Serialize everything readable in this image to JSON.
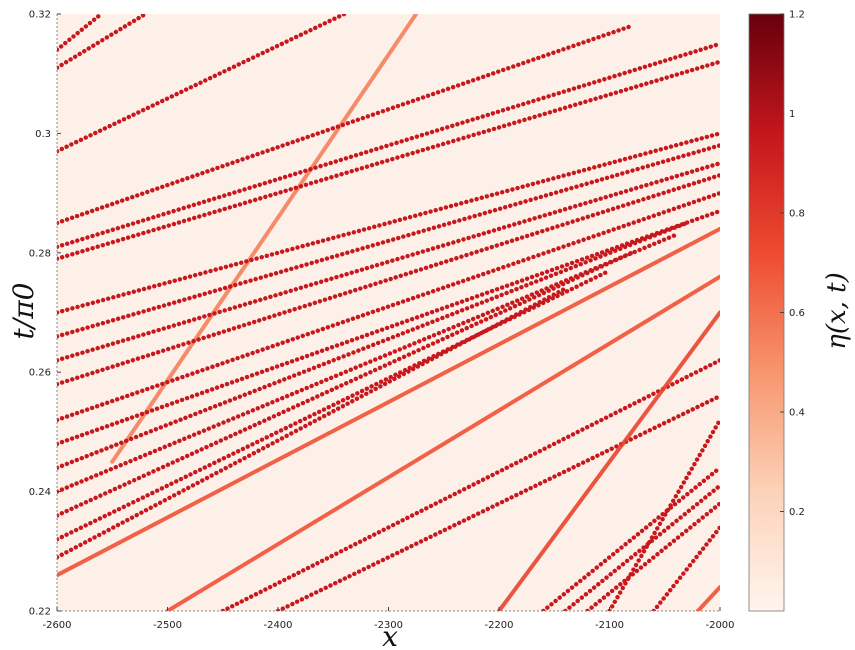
{
  "chart_data": {
    "type": "heatmap",
    "title": "",
    "xlabel": "x",
    "ylabel": "t/π0",
    "colorbar_label": "η(x, t)",
    "xlim": [
      -2600,
      -2000
    ],
    "ylim": [
      0.22,
      0.32
    ],
    "x_ticks": [
      -2600,
      -2500,
      -2400,
      -2300,
      -2200,
      -2100,
      -2000
    ],
    "y_ticks": [
      0.22,
      0.24,
      0.26,
      0.28,
      0.3,
      0.32
    ],
    "colorbar_ticks": [
      0.2,
      0.4,
      0.6,
      0.8,
      1,
      1.2
    ],
    "colorbar_range": [
      0,
      1.2
    ],
    "colormap": [
      "#fff5ee",
      "#fcd2b8",
      "#f7966e",
      "#ee4b30",
      "#c4161c",
      "#67000d"
    ],
    "background_color": "#fdf0e8",
    "series": [
      {
        "x": [
          -2550,
          -2275
        ],
        "t": [
          0.245,
          0.32
        ],
        "peak": 0.55,
        "dotted": false
      },
      {
        "x": [
          -2600,
          -2340
        ],
        "t": [
          0.297,
          0.32
        ],
        "peak": 0.95,
        "dotted": true
      },
      {
        "x": [
          -2600,
          -2520
        ],
        "t": [
          0.311,
          0.32
        ],
        "peak": 0.95,
        "dotted": true
      },
      {
        "x": [
          -2600,
          -2560
        ],
        "t": [
          0.314,
          0.32
        ],
        "peak": 0.95,
        "dotted": true
      },
      {
        "x": [
          -2600,
          -2080
        ],
        "t": [
          0.285,
          0.318
        ],
        "peak": 0.95,
        "dotted": true
      },
      {
        "x": [
          -2600,
          -2000
        ],
        "t": [
          0.281,
          0.315
        ],
        "peak": 0.95,
        "dotted": true
      },
      {
        "x": [
          -2600,
          -2000
        ],
        "t": [
          0.279,
          0.312
        ],
        "peak": 0.95,
        "dotted": true
      },
      {
        "x": [
          -2600,
          -2000
        ],
        "t": [
          0.27,
          0.3
        ],
        "peak": 0.95,
        "dotted": true
      },
      {
        "x": [
          -2600,
          -2000
        ],
        "t": [
          0.266,
          0.298
        ],
        "peak": 0.95,
        "dotted": true
      },
      {
        "x": [
          -2600,
          -2000
        ],
        "t": [
          0.262,
          0.295
        ],
        "peak": 0.95,
        "dotted": true
      },
      {
        "x": [
          -2600,
          -2000
        ],
        "t": [
          0.258,
          0.293
        ],
        "peak": 0.95,
        "dotted": true
      },
      {
        "x": [
          -2600,
          -2000
        ],
        "t": [
          0.252,
          0.29
        ],
        "peak": 0.95,
        "dotted": true
      },
      {
        "x": [
          -2600,
          -2000
        ],
        "t": [
          0.248,
          0.287
        ],
        "peak": 0.95,
        "dotted": true
      },
      {
        "x": [
          -2600,
          -2030
        ],
        "t": [
          0.244,
          0.285
        ],
        "peak": 0.95,
        "dotted": true
      },
      {
        "x": [
          -2600,
          -2040
        ],
        "t": [
          0.24,
          0.283
        ],
        "peak": 0.95,
        "dotted": true
      },
      {
        "x": [
          -2600,
          -2080
        ],
        "t": [
          0.236,
          0.28
        ],
        "peak": 0.95,
        "dotted": true
      },
      {
        "x": [
          -2600,
          -2100
        ],
        "t": [
          0.232,
          0.277
        ],
        "peak": 0.95,
        "dotted": true
      },
      {
        "x": [
          -2600,
          -2140
        ],
        "t": [
          0.229,
          0.274
        ],
        "peak": 0.95,
        "dotted": true
      },
      {
        "x": [
          -2600,
          -2000
        ],
        "t": [
          0.226,
          0.284
        ],
        "peak": 0.7,
        "dotted": false
      },
      {
        "x": [
          -2500,
          -2000
        ],
        "t": [
          0.22,
          0.276
        ],
        "peak": 0.7,
        "dotted": false
      },
      {
        "x": [
          -2450,
          -2000
        ],
        "t": [
          0.22,
          0.262
        ],
        "peak": 0.95,
        "dotted": true
      },
      {
        "x": [
          -2400,
          -2000
        ],
        "t": [
          0.22,
          0.256
        ],
        "peak": 0.95,
        "dotted": true
      },
      {
        "x": [
          -2200,
          -2000
        ],
        "t": [
          0.22,
          0.27
        ],
        "peak": 0.75,
        "dotted": false
      },
      {
        "x": [
          -2100,
          -2000
        ],
        "t": [
          0.22,
          0.252
        ],
        "peak": 0.95,
        "dotted": true
      },
      {
        "x": [
          -2160,
          -2000
        ],
        "t": [
          0.22,
          0.244
        ],
        "peak": 0.95,
        "dotted": true
      },
      {
        "x": [
          -2140,
          -2000
        ],
        "t": [
          0.22,
          0.241
        ],
        "peak": 0.95,
        "dotted": true
      },
      {
        "x": [
          -2120,
          -2000
        ],
        "t": [
          0.22,
          0.238
        ],
        "peak": 0.95,
        "dotted": true
      },
      {
        "x": [
          -2060,
          -2000
        ],
        "t": [
          0.22,
          0.234
        ],
        "peak": 0.95,
        "dotted": true
      },
      {
        "x": [
          -2020,
          -2000
        ],
        "t": [
          0.22,
          0.224
        ],
        "peak": 0.7,
        "dotted": false
      }
    ]
  }
}
